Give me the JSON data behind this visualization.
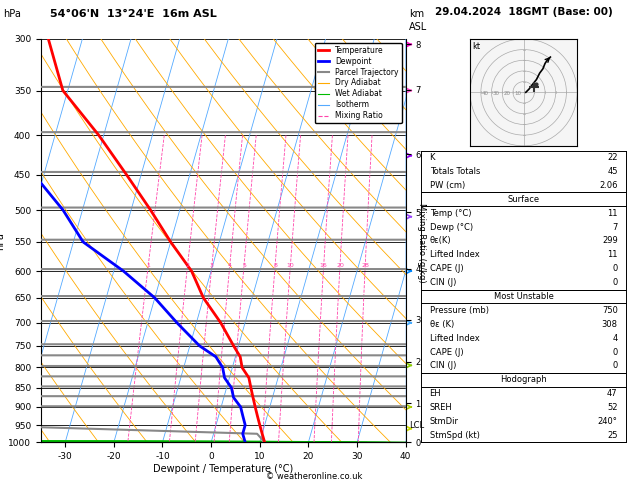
{
  "title_left": "hPa   54°06'N  13°24'E  16m ASL",
  "title_right": "29.04.2024  18GMT (Base: 00)",
  "xlabel": "Dewpoint / Temperature (°C)",
  "ylabel_left": "hPa",
  "ylabel_right_km": "km\nASL",
  "pressure_levels": [
    300,
    350,
    400,
    450,
    500,
    550,
    600,
    650,
    700,
    750,
    800,
    850,
    900,
    950,
    1000
  ],
  "temp_range": [
    -35,
    40
  ],
  "mixing_ratio_vals": [
    1,
    2,
    3,
    4,
    5,
    8,
    10,
    16,
    20,
    28
  ],
  "km_ticks": [
    8,
    7,
    6,
    5,
    4,
    3,
    2,
    1,
    0
  ],
  "km_pressures": [
    305,
    350,
    425,
    506,
    600,
    700,
    795,
    900,
    1013
  ],
  "lcl_pressure": 950,
  "background_color": "#ffffff",
  "isotherm_color": "#55aaff",
  "dry_adiabat_color": "#ffaa00",
  "wet_adiabat_color": "#00bb00",
  "mixing_ratio_color": "#ff44aa",
  "isobar_color": "#000000",
  "temp_line_color": "#ff0000",
  "dewp_line_color": "#0000ff",
  "parcel_color": "#888888",
  "legend_entries": [
    {
      "label": "Temperature",
      "color": "#ff0000",
      "style": "-",
      "lw": 2
    },
    {
      "label": "Dewpoint",
      "color": "#0000ff",
      "style": "-",
      "lw": 2
    },
    {
      "label": "Parcel Trajectory",
      "color": "#888888",
      "style": "-",
      "lw": 1.5
    },
    {
      "label": "Dry Adiabat",
      "color": "#ffaa00",
      "style": "-",
      "lw": 0.8
    },
    {
      "label": "Wet Adiabat",
      "color": "#00bb00",
      "style": "-",
      "lw": 0.8
    },
    {
      "label": "Isotherm",
      "color": "#55aaff",
      "style": "-",
      "lw": 0.8
    },
    {
      "label": "Mixing Ratio",
      "color": "#ff44aa",
      "style": "--",
      "lw": 0.8
    }
  ],
  "info_block": {
    "K": 22,
    "Totals_Totals": 45,
    "PW_cm": "2.06",
    "Surface_Temp": 11,
    "Surface_Dewp": 7,
    "Surface_theta_e": 299,
    "Lifted_Index": 11,
    "CAPE_J": 0,
    "CIN_J": 0,
    "MU_Pressure_mb": 750,
    "MU_theta_e": 308,
    "MU_Lifted_Index": 4,
    "MU_CAPE_J": 0,
    "MU_CIN_J": 0,
    "EH": 47,
    "SREH": 52,
    "StmDir": "240°",
    "StmSpd_kt": 25
  },
  "copyright": "© weatheronline.co.uk",
  "km_marker_colors": [
    "#ff44cc",
    "#ff44cc",
    "#9944ff",
    "#9944ff",
    "#44aaff",
    "#44aaff",
    "#aacc00",
    "#aacc00",
    "#aacc00"
  ],
  "skew_per_decade": 45.0
}
